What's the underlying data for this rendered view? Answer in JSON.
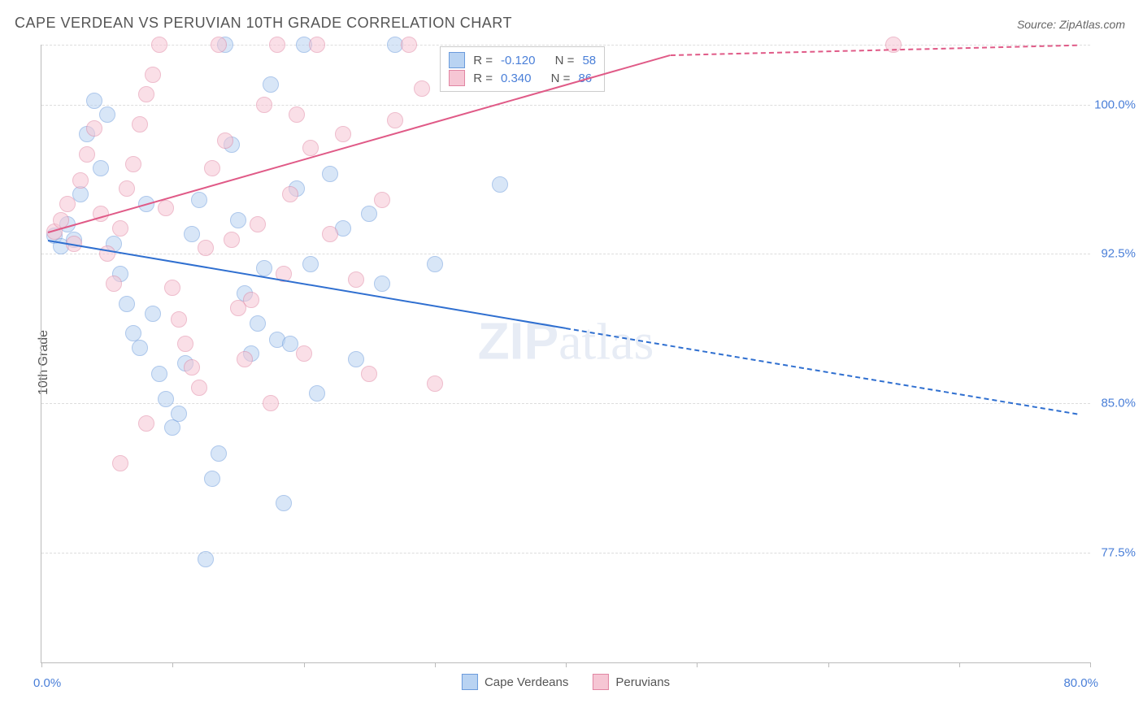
{
  "title": "CAPE VERDEAN VS PERUVIAN 10TH GRADE CORRELATION CHART",
  "source": "Source: ZipAtlas.com",
  "ylabel": "10th Grade",
  "watermark_bold": "ZIP",
  "watermark_light": "atlas",
  "chart": {
    "type": "scatter",
    "xlim": [
      0,
      80
    ],
    "ylim": [
      72,
      103
    ],
    "x_ticks": [
      0,
      10,
      20,
      30,
      40,
      50,
      60,
      70,
      80
    ],
    "x_label_start": "0.0%",
    "x_label_end": "80.0%",
    "y_gridlines": [
      77.5,
      85.0,
      92.5,
      100.0,
      103.0
    ],
    "y_tick_labels": [
      "77.5%",
      "85.0%",
      "92.5%",
      "100.0%"
    ],
    "y_tick_values": [
      77.5,
      85.0,
      92.5,
      100.0
    ],
    "background_color": "#ffffff",
    "grid_color": "#dddddd",
    "series": [
      {
        "name": "Cape Verdeans",
        "fill": "#b9d3f2",
        "stroke": "#6b9bdc",
        "line_color": "#2f6fd0",
        "R": "-0.120",
        "N": "58",
        "trend": {
          "x1": 0.5,
          "y1": 93.2,
          "x2": 40,
          "y2": 88.8,
          "x2_dash": 79,
          "y2_dash": 84.5
        },
        "points": [
          [
            1,
            93.4
          ],
          [
            1.5,
            92.9
          ],
          [
            2,
            94.0
          ],
          [
            2.5,
            93.2
          ],
          [
            3,
            95.5
          ],
          [
            3.5,
            98.5
          ],
          [
            4,
            100.2
          ],
          [
            4.5,
            96.8
          ],
          [
            5,
            99.5
          ],
          [
            5.5,
            93.0
          ],
          [
            6,
            91.5
          ],
          [
            6.5,
            90.0
          ],
          [
            7,
            88.5
          ],
          [
            7.5,
            87.8
          ],
          [
            8,
            95.0
          ],
          [
            8.5,
            89.5
          ],
          [
            9,
            86.5
          ],
          [
            9.5,
            85.2
          ],
          [
            10,
            83.8
          ],
          [
            10.5,
            84.5
          ],
          [
            11,
            87.0
          ],
          [
            11.5,
            93.5
          ],
          [
            12,
            95.2
          ],
          [
            12.5,
            77.2
          ],
          [
            13,
            81.2
          ],
          [
            13.5,
            82.5
          ],
          [
            14,
            103.0
          ],
          [
            14.5,
            98.0
          ],
          [
            15,
            94.2
          ],
          [
            15.5,
            90.5
          ],
          [
            16,
            87.5
          ],
          [
            16.5,
            89.0
          ],
          [
            17,
            91.8
          ],
          [
            17.5,
            101.0
          ],
          [
            18,
            88.2
          ],
          [
            18.5,
            80.0
          ],
          [
            19,
            88.0
          ],
          [
            19.5,
            95.8
          ],
          [
            20,
            103.0
          ],
          [
            20.5,
            92.0
          ],
          [
            21,
            85.5
          ],
          [
            22,
            96.5
          ],
          [
            23,
            93.8
          ],
          [
            24,
            87.2
          ],
          [
            25,
            94.5
          ],
          [
            26,
            91.0
          ],
          [
            27,
            103.0
          ],
          [
            30,
            92.0
          ],
          [
            35,
            96.0
          ]
        ]
      },
      {
        "name": "Peruvians",
        "fill": "#f6c6d4",
        "stroke": "#e186a3",
        "line_color": "#e05a87",
        "R": "0.340",
        "N": "86",
        "trend": {
          "x1": 0.5,
          "y1": 93.6,
          "x2": 48,
          "y2": 102.5,
          "x2_dash": 79,
          "y2_dash": 103.0
        },
        "points": [
          [
            1,
            93.6
          ],
          [
            1.5,
            94.2
          ],
          [
            2,
            95.0
          ],
          [
            2.5,
            93.0
          ],
          [
            3,
            96.2
          ],
          [
            3.5,
            97.5
          ],
          [
            4,
            98.8
          ],
          [
            4.5,
            94.5
          ],
          [
            5,
            92.5
          ],
          [
            5.5,
            91.0
          ],
          [
            6,
            93.8
          ],
          [
            6.5,
            95.8
          ],
          [
            7,
            97.0
          ],
          [
            7.5,
            99.0
          ],
          [
            8,
            100.5
          ],
          [
            8.5,
            101.5
          ],
          [
            9,
            103.0
          ],
          [
            9.5,
            94.8
          ],
          [
            10,
            90.8
          ],
          [
            10.5,
            89.2
          ],
          [
            11,
            88.0
          ],
          [
            11.5,
            86.8
          ],
          [
            12,
            85.8
          ],
          [
            12.5,
            92.8
          ],
          [
            13,
            96.8
          ],
          [
            13.5,
            103.0
          ],
          [
            14,
            98.2
          ],
          [
            14.5,
            93.2
          ],
          [
            15,
            89.8
          ],
          [
            15.5,
            87.2
          ],
          [
            16,
            90.2
          ],
          [
            16.5,
            94.0
          ],
          [
            17,
            100.0
          ],
          [
            17.5,
            85.0
          ],
          [
            18,
            103.0
          ],
          [
            18.5,
            91.5
          ],
          [
            19,
            95.5
          ],
          [
            19.5,
            99.5
          ],
          [
            20,
            87.5
          ],
          [
            20.5,
            97.8
          ],
          [
            21,
            103.0
          ],
          [
            22,
            93.5
          ],
          [
            23,
            98.5
          ],
          [
            24,
            91.2
          ],
          [
            25,
            86.5
          ],
          [
            26,
            95.2
          ],
          [
            27,
            99.2
          ],
          [
            28,
            103.0
          ],
          [
            29,
            100.8
          ],
          [
            30,
            86.0
          ],
          [
            65,
            103.0
          ],
          [
            6,
            82.0
          ],
          [
            8,
            84.0
          ]
        ]
      }
    ],
    "legend_labels": [
      "Cape Verdeans",
      "Peruvians"
    ],
    "stats_prefix_r": "R =",
    "stats_prefix_n": "N ="
  }
}
